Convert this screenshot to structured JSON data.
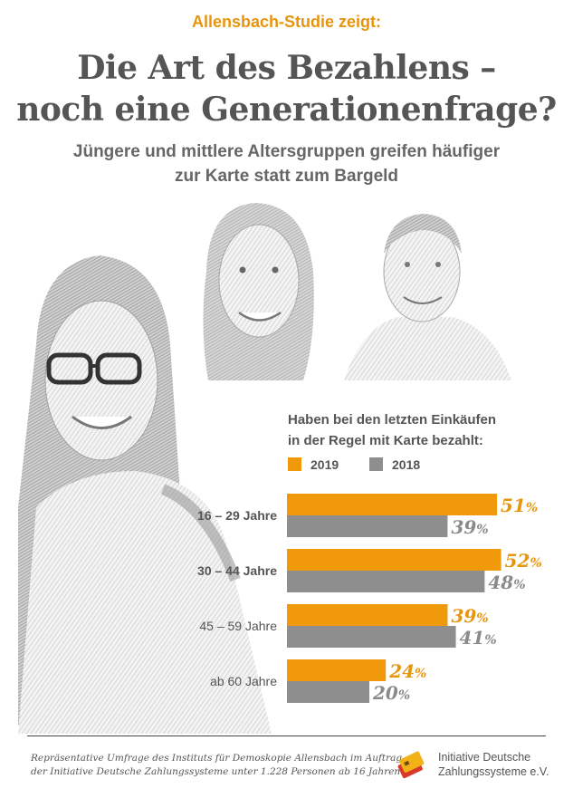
{
  "header": {
    "kicker": "Allensbach-Studie zeigt:",
    "title_line1": "Die Art des Bezahlens –",
    "title_line2": "noch eine Generationenfrage?",
    "subtitle_line1": "Jüngere und mittlere Altersgruppen greifen häufiger",
    "subtitle_line2": "zur Karte statt zum Bargeld"
  },
  "colors": {
    "orange": "#f09a0b",
    "grey": "#8e8e8e",
    "kicker": "#e8950e",
    "text": "#555555"
  },
  "chart_data": {
    "type": "bar",
    "orientation": "horizontal",
    "title_line1": "Haben bei den letzten Einkäufen",
    "title_line2": "in der Regel mit Karte bezahlt:",
    "categories": [
      "16 – 29 Jahre",
      "30 – 44 Jahre",
      "45 – 59 Jahre",
      "ab 60 Jahre"
    ],
    "categories_bold": [
      true,
      true,
      false,
      false
    ],
    "series": [
      {
        "name": "2019",
        "color": "#f09a0b",
        "values": [
          51,
          52,
          39,
          24
        ]
      },
      {
        "name": "2018",
        "color": "#8e8e8e",
        "values": [
          39,
          48,
          41,
          20
        ]
      }
    ],
    "unit": "%",
    "legend_position": "top",
    "grid": false
  },
  "footer": {
    "source_line1": "Repräsentative Umfrage des Instituts für Demoskopie Allensbach im Auftrag",
    "source_line2": "der Initiative Deutsche Zahlungssysteme unter 1.228 Personen ab 16 Jahren",
    "org_line1": "Initiative Deutsche",
    "org_line2": "Zahlungssysteme e.V.",
    "logo_icon": "cards-logo-icon"
  },
  "photos": {
    "icon": "people-sketch-illustration"
  }
}
